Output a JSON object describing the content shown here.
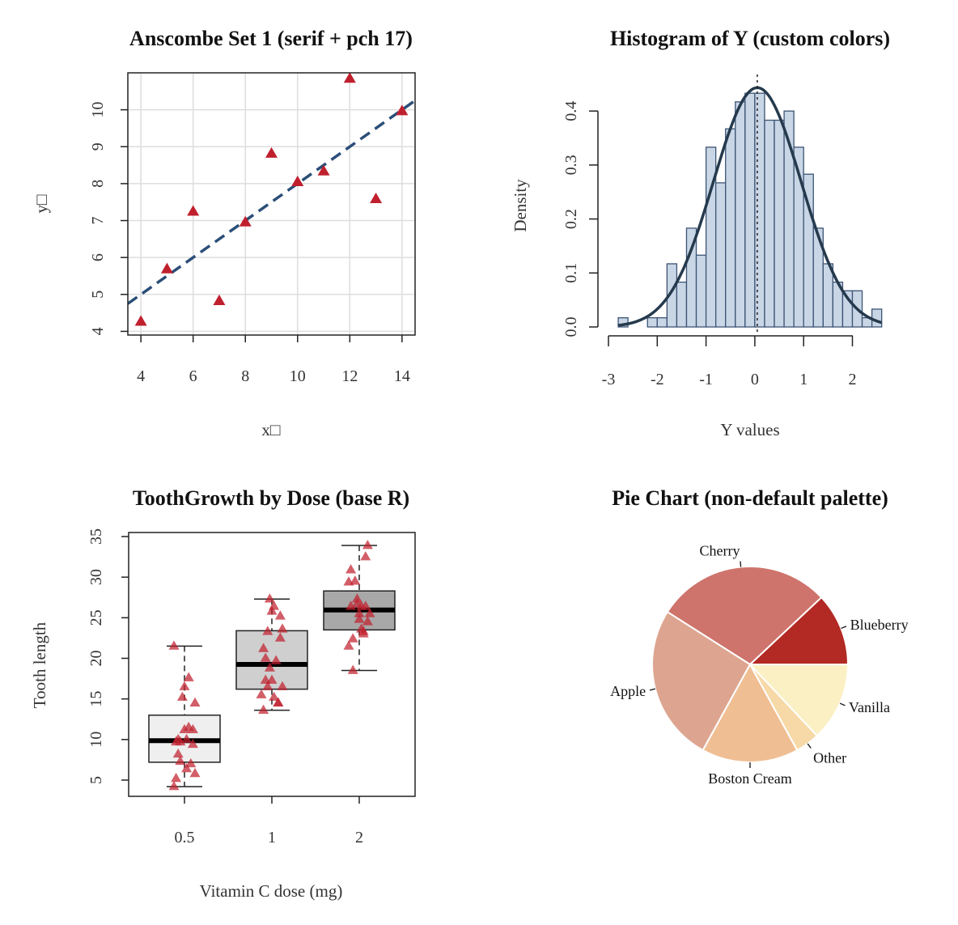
{
  "colors": {
    "marker_red": "#c0202e",
    "fit_line": "#2a4e78",
    "hist_fill": "#c9d6e6",
    "hist_edge": "#3c5474",
    "density_curve": "#253a4d",
    "box_light": "#efefef",
    "box_mid": "#cfcfcf",
    "box_dark": "#a8a8a8"
  },
  "chart_data": [
    {
      "type": "scatter",
      "title": "Anscombe Set 1 (serif + pch 17)",
      "xlabel": "x□",
      "ylabel": "y□",
      "xlim": [
        3.5,
        14.5
      ],
      "ylim": [
        3.9,
        11.0
      ],
      "xticks": [
        "4",
        "6",
        "8",
        "10",
        "12",
        "14"
      ],
      "yticks": [
        "4",
        "5",
        "6",
        "7",
        "8",
        "9",
        "10"
      ],
      "grid": true,
      "points": [
        {
          "x": 10,
          "y": 8.04
        },
        {
          "x": 8,
          "y": 6.95
        },
        {
          "x": 13,
          "y": 7.58
        },
        {
          "x": 9,
          "y": 8.81
        },
        {
          "x": 11,
          "y": 8.33
        },
        {
          "x": 14,
          "y": 9.96
        },
        {
          "x": 6,
          "y": 7.24
        },
        {
          "x": 4,
          "y": 4.26
        },
        {
          "x": 12,
          "y": 10.84
        },
        {
          "x": 7,
          "y": 4.82
        },
        {
          "x": 5,
          "y": 5.68
        }
      ],
      "fit_line": {
        "intercept": 3.0,
        "slope": 0.5
      }
    },
    {
      "type": "bar",
      "title": "Histogram of Y (custom colors)",
      "xlabel": "Y values",
      "ylabel": "Density",
      "xlim": [
        -3,
        2.65
      ],
      "ylim": [
        0,
        0.45
      ],
      "xticks": [
        "-3",
        "-2",
        "-1",
        "0",
        "1",
        "2"
      ],
      "yticks": [
        "0.0",
        "0.1",
        "0.2",
        "0.3",
        "0.4"
      ],
      "bin_start": -2.8,
      "bin_width": 0.2,
      "values": [
        0.017,
        0.0,
        0.0,
        0.017,
        0.017,
        0.117,
        0.083,
        0.183,
        0.133,
        0.333,
        0.267,
        0.367,
        0.417,
        0.433,
        0.433,
        0.383,
        0.383,
        0.4,
        0.333,
        0.283,
        0.183,
        0.117,
        0.083,
        0.067,
        0.067,
        0.017,
        0.033
      ],
      "mean_line": 0.05,
      "density_curve": {
        "mean": 0.05,
        "sd": 0.9
      }
    },
    {
      "type": "box",
      "title": "ToothGrowth by Dose (base R)",
      "xlabel": "Vitamin C dose (mg)",
      "ylabel": "Tooth length",
      "ylim": [
        3,
        35.5
      ],
      "yticks": [
        "5",
        "10",
        "15",
        "20",
        "25",
        "30",
        "35"
      ],
      "categories": [
        "0.5",
        "1",
        "2"
      ],
      "boxes": [
        {
          "min": 4.2,
          "q1": 7.2,
          "median": 9.85,
          "q3": 13.0,
          "max": 21.5
        },
        {
          "min": 13.6,
          "q1": 16.2,
          "median": 19.25,
          "q3": 23.4,
          "max": 27.3
        },
        {
          "min": 18.5,
          "q1": 23.5,
          "median": 25.95,
          "q3": 28.3,
          "max": 33.9
        }
      ],
      "points": [
        [
          4.2,
          11.5,
          7.3,
          5.8,
          6.4,
          10.0,
          11.2,
          11.2,
          5.2,
          7.0,
          15.2,
          21.5,
          17.6,
          9.7,
          14.5,
          10.0,
          8.2,
          9.4,
          16.5,
          9.7
        ],
        [
          16.5,
          16.5,
          15.2,
          17.3,
          22.5,
          17.3,
          13.6,
          14.5,
          18.8,
          15.5,
          19.7,
          23.3,
          23.6,
          26.4,
          20.0,
          25.2,
          25.8,
          21.2,
          14.5,
          27.3
        ],
        [
          23.6,
          18.5,
          33.9,
          25.5,
          26.4,
          32.5,
          26.7,
          21.5,
          23.3,
          29.5,
          25.5,
          26.4,
          22.4,
          24.5,
          24.8,
          30.9,
          26.4,
          27.3,
          29.4,
          23.0
        ]
      ]
    },
    {
      "type": "pie",
      "title": "Pie Chart (non-default palette)",
      "slices": [
        {
          "label": "Blueberry",
          "value": 0.12,
          "color": "#b22a23"
        },
        {
          "label": "Cherry",
          "value": 0.29,
          "color": "#ce746c"
        },
        {
          "label": "Apple",
          "value": 0.26,
          "color": "#dda590"
        },
        {
          "label": "Boston Cream",
          "value": 0.16,
          "color": "#f0be93"
        },
        {
          "label": "Other",
          "value": 0.04,
          "color": "#f6d9a6"
        },
        {
          "label": "Vanilla",
          "value": 0.13,
          "color": "#fbf0c4"
        }
      ]
    }
  ]
}
